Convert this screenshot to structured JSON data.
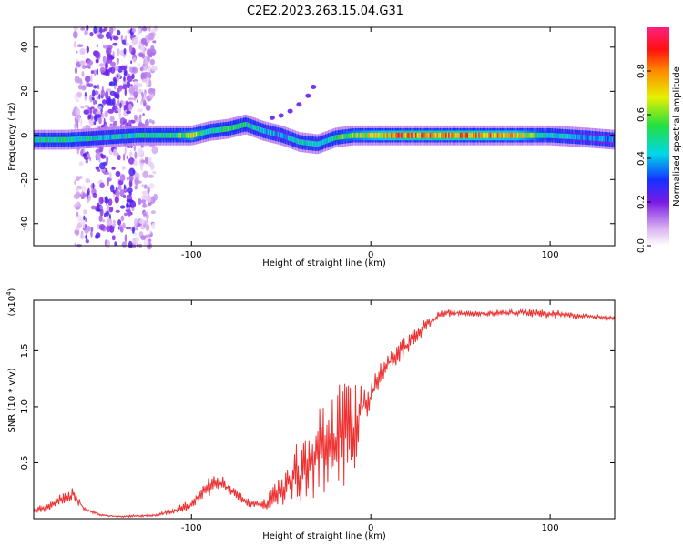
{
  "title": "C2E2.2023.263.15.04.G31",
  "chart_data": [
    {
      "type": "heatmap",
      "xlabel": "Height of straight line (km)",
      "ylabel": "Frequency (Hz)",
      "xlim": [
        -188,
        136
      ],
      "ylim": [
        -50,
        49
      ],
      "x_ticks": [
        -100,
        0,
        100
      ],
      "x_tick_labels": [
        "-100",
        "0",
        "100"
      ],
      "y_ticks": [
        -40,
        -20,
        0,
        20,
        40
      ],
      "y_tick_labels": [
        "-40",
        "-20",
        "0",
        "20",
        "40"
      ],
      "colorbar": {
        "label": "Normalized spectral amplitude",
        "range": [
          0,
          1
        ],
        "ticks": [
          0.0,
          0.2,
          0.4,
          0.6,
          0.8
        ],
        "tick_labels": [
          "0.0",
          "0.2",
          "0.4",
          "0.6",
          "0.8"
        ],
        "colormap": "rainbow (white-violet-blue-cyan-green-yellow-orange-red)"
      },
      "ridge": {
        "x": [
          -188,
          -170,
          -150,
          -130,
          -110,
          -100,
          -90,
          -80,
          -70,
          -60,
          -50,
          -40,
          -30,
          -20,
          -10,
          0,
          20,
          40,
          60,
          80,
          100,
          120,
          136
        ],
        "frequency": [
          -2,
          -2,
          -1,
          0,
          0,
          0,
          2,
          3,
          5,
          2,
          0,
          -3,
          -4,
          -1,
          0,
          0,
          0,
          0,
          0,
          0,
          0,
          -1,
          -2
        ],
        "peak_amplitude": [
          0.55,
          0.6,
          0.5,
          0.55,
          0.6,
          0.75,
          0.55,
          0.6,
          0.55,
          0.5,
          0.45,
          0.55,
          0.5,
          0.6,
          0.7,
          0.8,
          0.95,
          0.95,
          0.9,
          0.85,
          0.55,
          0.45,
          0.4
        ]
      },
      "branch": {
        "x": [
          -55,
          -50,
          -45,
          -40,
          -35,
          -32
        ],
        "frequency": [
          8,
          9,
          11,
          14,
          18,
          22
        ]
      }
    },
    {
      "type": "line",
      "xlabel": "Height of straight line (km)",
      "ylabel": "SNR (10 * v/v)",
      "y_scale_label": "(x10",
      "y_scale_exponent": "4",
      "y_scale_suffix": ")",
      "xlim": [
        -188,
        136
      ],
      "ylim": [
        0,
        1.95
      ],
      "x_ticks": [
        -100,
        0,
        100
      ],
      "x_tick_labels": [
        "-100",
        "0",
        "100"
      ],
      "y_ticks": [
        0.5,
        1.0,
        1.5
      ],
      "y_tick_labels": [
        "0.5",
        "1.0",
        "1.5"
      ],
      "series": [
        {
          "color": "#ee3333",
          "x": [
            -188,
            -180,
            -172,
            -166,
            -160,
            -150,
            -140,
            -120,
            -110,
            -100,
            -95,
            -88,
            -80,
            -70,
            -60,
            -50,
            -40,
            -30,
            -20,
            -15,
            -10,
            -5,
            0,
            5,
            10,
            20,
            30,
            40,
            60,
            80,
            100,
            120,
            136
          ],
          "y": [
            0.07,
            0.1,
            0.18,
            0.22,
            0.09,
            0.03,
            0.02,
            0.03,
            0.07,
            0.13,
            0.22,
            0.32,
            0.28,
            0.15,
            0.12,
            0.25,
            0.4,
            0.55,
            0.7,
            0.85,
            0.8,
            0.95,
            1.1,
            1.25,
            1.4,
            1.55,
            1.72,
            1.84,
            1.83,
            1.84,
            1.83,
            1.81,
            1.79
          ],
          "noise": [
            0.03,
            0.04,
            0.05,
            0.06,
            0.02,
            0.01,
            0.01,
            0.01,
            0.03,
            0.05,
            0.07,
            0.1,
            0.08,
            0.04,
            0.05,
            0.15,
            0.3,
            0.4,
            0.55,
            0.6,
            0.5,
            0.25,
            0.12,
            0.15,
            0.12,
            0.1,
            0.07,
            0.04,
            0.03,
            0.03,
            0.05,
            0.02,
            0.02
          ]
        }
      ]
    }
  ]
}
